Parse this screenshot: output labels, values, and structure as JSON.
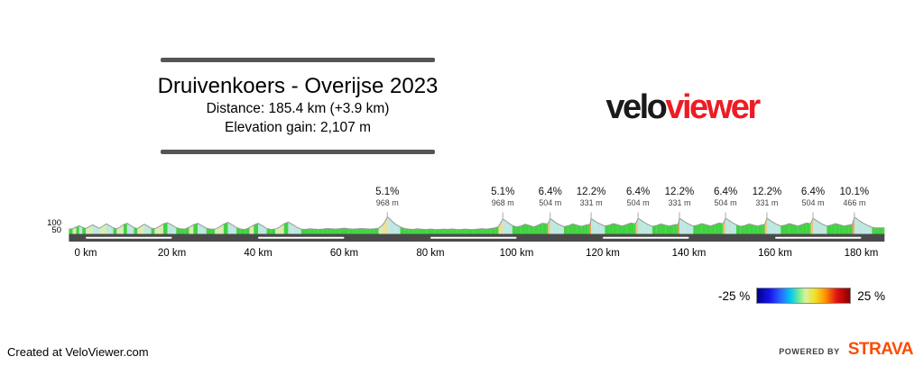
{
  "header": {
    "title": "Druivenkoers - Overijse 2023",
    "distance": "Distance: 185.4 km (+3.9 km)",
    "elevation_gain": "Elevation gain: 2,107 m"
  },
  "logo": {
    "velo": "velo",
    "viewer": "viewer",
    "velo_color": "#1a1a1a",
    "viewer_color": "#ed1c24"
  },
  "legend": {
    "min_label": "-25 %",
    "max_label": "25 %",
    "gradient_stops": [
      [
        "#00008b",
        0
      ],
      [
        "#1616f0",
        14
      ],
      [
        "#2a6cff",
        26
      ],
      [
        "#00c8f0",
        36
      ],
      [
        "#8cf08c",
        47
      ],
      [
        "#d8f0a0",
        52
      ],
      [
        "#f0e228",
        62
      ],
      [
        "#ff9600",
        73
      ],
      [
        "#e01010",
        86
      ],
      [
        "#8c0000",
        100
      ]
    ]
  },
  "footer": {
    "credit": "Created at VeloViewer.com",
    "powered_by": "POWERED BY",
    "strava": "STRAVA",
    "strava_color": "#fc4c02"
  },
  "chart_data": {
    "type": "area",
    "title": "Druivenkoers - Overijse 2023",
    "x_unit": "km",
    "y_unit": "m",
    "x_range": [
      -3.9,
      185.4
    ],
    "x_ticks": [
      {
        "km": 0,
        "label": "0 km"
      },
      {
        "km": 20,
        "label": "20 km"
      },
      {
        "km": 40,
        "label": "40 km"
      },
      {
        "km": 60,
        "label": "60 km"
      },
      {
        "km": 80,
        "label": "80 km"
      },
      {
        "km": 100,
        "label": "100 km"
      },
      {
        "km": 120,
        "label": "120 km"
      },
      {
        "km": 140,
        "label": "140 km"
      },
      {
        "km": 160,
        "label": "160 km"
      },
      {
        "km": 180,
        "label": "180 km"
      }
    ],
    "y_ticks": [
      {
        "m": 100,
        "label": "100"
      },
      {
        "m": 50,
        "label": "50"
      }
    ],
    "climbs": [
      {
        "km": 70.0,
        "gradient": "5.1%",
        "length": "968 m"
      },
      {
        "km": 96.8,
        "gradient": "5.1%",
        "length": "968 m"
      },
      {
        "km": 107.8,
        "gradient": "6.4%",
        "length": "504 m"
      },
      {
        "km": 117.3,
        "gradient": "12.2%",
        "length": "331 m"
      },
      {
        "km": 128.2,
        "gradient": "6.4%",
        "length": "504 m"
      },
      {
        "km": 137.8,
        "gradient": "12.2%",
        "length": "331 m"
      },
      {
        "km": 148.5,
        "gradient": "6.4%",
        "length": "504 m"
      },
      {
        "km": 158.1,
        "gradient": "12.2%",
        "length": "331 m"
      },
      {
        "km": 168.8,
        "gradient": "6.4%",
        "length": "504 m"
      },
      {
        "km": 178.4,
        "gradient": "10.1%",
        "length": "466 m"
      }
    ],
    "axis_bar_color": "#4a4a4a",
    "axis_strip_color": "#ffffff",
    "axis_distance_strips_km": [
      [
        0,
        20
      ],
      [
        40,
        60
      ],
      [
        80,
        100
      ],
      [
        120,
        140
      ],
      [
        160,
        180
      ]
    ],
    "outline_color": "#999999",
    "gradient_fill_colors": [
      {
        "max_gradient": -5,
        "color": "#a5d8ef"
      },
      {
        "max_gradient": -1.2,
        "color": "#bde8e0"
      },
      {
        "max_gradient": 1.2,
        "color": "#41d241"
      },
      {
        "max_gradient": 3.2,
        "color": "#d8edb2"
      },
      {
        "max_gradient": 6,
        "color": "#ecdf96"
      },
      {
        "max_gradient": 9,
        "color": "#f0c47f"
      },
      {
        "max_gradient": 999,
        "color": "#e8a05c"
      }
    ],
    "elevation_profile": [
      [
        -3.9,
        58
      ],
      [
        -3,
        61
      ],
      [
        -2.2,
        72
      ],
      [
        -1.5,
        80
      ],
      [
        -0.8,
        70
      ],
      [
        0,
        62
      ],
      [
        0.8,
        74
      ],
      [
        1.6,
        86
      ],
      [
        2.4,
        74
      ],
      [
        3.2,
        64
      ],
      [
        4,
        78
      ],
      [
        4.8,
        92
      ],
      [
        5.6,
        80
      ],
      [
        6.4,
        66
      ],
      [
        7.2,
        60
      ],
      [
        8,
        72
      ],
      [
        8.8,
        88
      ],
      [
        9.6,
        96
      ],
      [
        10.4,
        82
      ],
      [
        11.2,
        68
      ],
      [
        12,
        62
      ],
      [
        12.8,
        76
      ],
      [
        13.6,
        90
      ],
      [
        14.4,
        78
      ],
      [
        15.2,
        64
      ],
      [
        16,
        60
      ],
      [
        17,
        74
      ],
      [
        18,
        92
      ],
      [
        19,
        100
      ],
      [
        20,
        84
      ],
      [
        21,
        68
      ],
      [
        22,
        60
      ],
      [
        23,
        58
      ],
      [
        24,
        70
      ],
      [
        25,
        86
      ],
      [
        26,
        96
      ],
      [
        27,
        80
      ],
      [
        28,
        64
      ],
      [
        29,
        58
      ],
      [
        30,
        58
      ],
      [
        31,
        72
      ],
      [
        32,
        90
      ],
      [
        33,
        102
      ],
      [
        34,
        86
      ],
      [
        35,
        68
      ],
      [
        36,
        58
      ],
      [
        37,
        56
      ],
      [
        38,
        68
      ],
      [
        39,
        84
      ],
      [
        40,
        96
      ],
      [
        41,
        80
      ],
      [
        42,
        62
      ],
      [
        43,
        56
      ],
      [
        44,
        58
      ],
      [
        45,
        72
      ],
      [
        46,
        92
      ],
      [
        47,
        104
      ],
      [
        48,
        88
      ],
      [
        49,
        70
      ],
      [
        50,
        58
      ],
      [
        51,
        56
      ],
      [
        52,
        60
      ],
      [
        53,
        58
      ],
      [
        54,
        56
      ],
      [
        55,
        58
      ],
      [
        56,
        62
      ],
      [
        57,
        60
      ],
      [
        58,
        58
      ],
      [
        59,
        61
      ],
      [
        60,
        64
      ],
      [
        61,
        60
      ],
      [
        62,
        58
      ],
      [
        63,
        60
      ],
      [
        64,
        62
      ],
      [
        65,
        60
      ],
      [
        66,
        58
      ],
      [
        67,
        60
      ],
      [
        68,
        64
      ],
      [
        69,
        88
      ],
      [
        69.5,
        110
      ],
      [
        70,
        137
      ],
      [
        70.5,
        128
      ],
      [
        71,
        112
      ],
      [
        72,
        88
      ],
      [
        73,
        72
      ],
      [
        74,
        62
      ],
      [
        75,
        58
      ],
      [
        76,
        56
      ],
      [
        77,
        60
      ],
      [
        78,
        57
      ],
      [
        79,
        55
      ],
      [
        80,
        58
      ],
      [
        81,
        56
      ],
      [
        82,
        55
      ],
      [
        83,
        58
      ],
      [
        84,
        56
      ],
      [
        85,
        59
      ],
      [
        86,
        56
      ],
      [
        87,
        55
      ],
      [
        88,
        58
      ],
      [
        89,
        56
      ],
      [
        90,
        55
      ],
      [
        91,
        58
      ],
      [
        92,
        61
      ],
      [
        93,
        58
      ],
      [
        94,
        62
      ],
      [
        95,
        66
      ],
      [
        95.8,
        74
      ],
      [
        96.8,
        123
      ],
      [
        97.4,
        114
      ],
      [
        98,
        100
      ],
      [
        99,
        82
      ],
      [
        100,
        72
      ],
      [
        101,
        78
      ],
      [
        102,
        90
      ],
      [
        103,
        82
      ],
      [
        104,
        72
      ],
      [
        105,
        84
      ],
      [
        106,
        96
      ],
      [
        107,
        92
      ],
      [
        107.3,
        94
      ],
      [
        107.8,
        126
      ],
      [
        108.3,
        118
      ],
      [
        109,
        102
      ],
      [
        110,
        86
      ],
      [
        111,
        74
      ],
      [
        112,
        80
      ],
      [
        113,
        92
      ],
      [
        114,
        84
      ],
      [
        115,
        76
      ],
      [
        116,
        84
      ],
      [
        116.6,
        88
      ],
      [
        117,
        86
      ],
      [
        117.3,
        126
      ],
      [
        117.8,
        118
      ],
      [
        118.5,
        104
      ],
      [
        119.5,
        90
      ],
      [
        120.5,
        78
      ],
      [
        121.5,
        84
      ],
      [
        122.5,
        94
      ],
      [
        123.5,
        86
      ],
      [
        124.5,
        78
      ],
      [
        125.5,
        88
      ],
      [
        126.5,
        98
      ],
      [
        127.2,
        94
      ],
      [
        127.7,
        96
      ],
      [
        128.2,
        128
      ],
      [
        128.7,
        120
      ],
      [
        129.5,
        104
      ],
      [
        130.5,
        88
      ],
      [
        131.5,
        76
      ],
      [
        132.5,
        82
      ],
      [
        133.5,
        92
      ],
      [
        134.5,
        84
      ],
      [
        135.5,
        78
      ],
      [
        136.5,
        86
      ],
      [
        137,
        88
      ],
      [
        137.5,
        88
      ],
      [
        137.8,
        128
      ],
      [
        138.3,
        120
      ],
      [
        139,
        106
      ],
      [
        140,
        90
      ],
      [
        141,
        78
      ],
      [
        142,
        84
      ],
      [
        143,
        94
      ],
      [
        144,
        86
      ],
      [
        145,
        78
      ],
      [
        146,
        88
      ],
      [
        147,
        98
      ],
      [
        147.7,
        94
      ],
      [
        148,
        96
      ],
      [
        148.5,
        128
      ],
      [
        149,
        120
      ],
      [
        150,
        102
      ],
      [
        151,
        86
      ],
      [
        152,
        76
      ],
      [
        153,
        82
      ],
      [
        154,
        92
      ],
      [
        155,
        84
      ],
      [
        156,
        78
      ],
      [
        157,
        86
      ],
      [
        157.6,
        88
      ],
      [
        158.1,
        128
      ],
      [
        158.6,
        120
      ],
      [
        159.3,
        106
      ],
      [
        160.3,
        90
      ],
      [
        161.3,
        78
      ],
      [
        162.3,
        84
      ],
      [
        163.3,
        94
      ],
      [
        164.3,
        86
      ],
      [
        165.3,
        78
      ],
      [
        166.3,
        88
      ],
      [
        167.3,
        98
      ],
      [
        168,
        94
      ],
      [
        168.3,
        96
      ],
      [
        168.8,
        128
      ],
      [
        169.3,
        120
      ],
      [
        170,
        106
      ],
      [
        171,
        90
      ],
      [
        172,
        78
      ],
      [
        173,
        84
      ],
      [
        174,
        94
      ],
      [
        175,
        86
      ],
      [
        176,
        78
      ],
      [
        177,
        84
      ],
      [
        177.9,
        88
      ],
      [
        178.4,
        135
      ],
      [
        178.9,
        128
      ],
      [
        179.6,
        112
      ],
      [
        180.5,
        96
      ],
      [
        181.5,
        82
      ],
      [
        182.5,
        70
      ],
      [
        183.2,
        66
      ],
      [
        184,
        66
      ],
      [
        185,
        66
      ],
      [
        185.4,
        66
      ]
    ]
  }
}
